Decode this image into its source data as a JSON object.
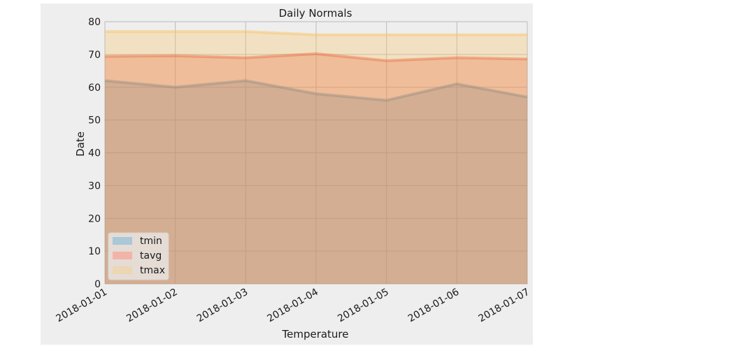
{
  "chart_data": {
    "type": "area",
    "title": "Daily Normals",
    "xlabel": "Temperature",
    "ylabel": "Date",
    "categories": [
      "2018-01-01",
      "2018-01-02",
      "2018-01-03",
      "2018-01-04",
      "2018-01-05",
      "2018-01-06",
      "2018-01-07"
    ],
    "series": [
      {
        "name": "tmin",
        "values": [
          62,
          60,
          62,
          58,
          56,
          61,
          57
        ],
        "color": "#348abd"
      },
      {
        "name": "tavg",
        "values": [
          69.4,
          69.6,
          69.0,
          70.2,
          68.1,
          69.0,
          68.6
        ],
        "color": "#e24a33"
      },
      {
        "name": "tmax",
        "values": [
          77,
          77,
          77,
          76,
          76,
          76,
          76
        ],
        "color": "#fbc15e"
      }
    ],
    "ylim": [
      0,
      80
    ],
    "yticks": [
      0,
      10,
      20,
      30,
      40,
      50,
      60,
      70,
      80
    ],
    "grid": true,
    "stacked": false,
    "legend_position": "lower left"
  },
  "legend": {
    "items": [
      {
        "label": "tmin",
        "color": "#a9c8d8"
      },
      {
        "label": "tavg",
        "color": "#f2b4a8"
      },
      {
        "label": "tmax",
        "color": "#ecd6b3"
      }
    ]
  }
}
